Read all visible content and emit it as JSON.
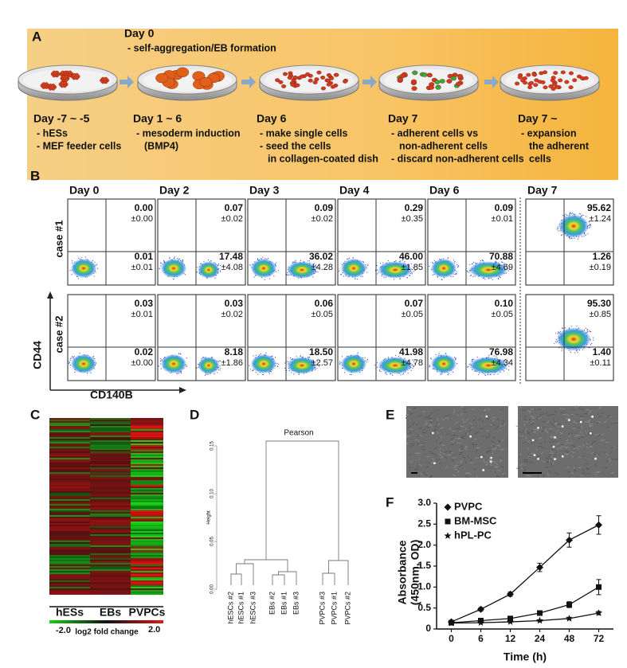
{
  "panel_a": {
    "label": "A",
    "day0": {
      "title": "Day 0",
      "desc": "- self-aggregation/EB formation"
    },
    "steps": [
      {
        "title": "Day -7 ~ -5",
        "lines": [
          "- hESs",
          "- MEF feeder cells"
        ]
      },
      {
        "title": "Day 1 ~ 6",
        "lines": [
          "- mesoderm induction",
          "(BMP4)"
        ]
      },
      {
        "title": "Day 6",
        "lines": [
          "- make single cells",
          "- seed the cells",
          "in collagen-coated dish"
        ]
      },
      {
        "title": "Day 7",
        "lines": [
          "- adherent cells vs",
          "non-adherent cells",
          "- discard non-adherent cells"
        ]
      },
      {
        "title": "Day 7 ~",
        "lines": [
          "- expansion",
          "the adherent",
          "cells"
        ]
      }
    ]
  },
  "panel_b": {
    "label": "B",
    "days": [
      "Day 0",
      "Day 2",
      "Day 3",
      "Day 4",
      "Day 6",
      "Day 7"
    ],
    "y_axis": "CD44",
    "x_axis": "CD140B",
    "rows": [
      {
        "name": "case #1",
        "cells": [
          {
            "upper": "0.00",
            "upper_sd": "±0.00",
            "lower": "0.01",
            "lower_sd": "±0.01"
          },
          {
            "upper": "0.07",
            "upper_sd": "±0.02",
            "lower": "17.48",
            "lower_sd": "±4.08"
          },
          {
            "upper": "0.09",
            "upper_sd": "±0.02",
            "lower": "36.02",
            "lower_sd": "±4.28"
          },
          {
            "upper": "0.29",
            "upper_sd": "±0.35",
            "lower": "46.00",
            "lower_sd": "±1.85"
          },
          {
            "upper": "0.09",
            "upper_sd": "±0.01",
            "lower": "70.88",
            "lower_sd": "±4.69"
          },
          {
            "upper": "95.62",
            "upper_sd": "±1.24",
            "lower": "1.26",
            "lower_sd": "±0.19"
          }
        ]
      },
      {
        "name": "case #2",
        "cells": [
          {
            "upper": "0.03",
            "upper_sd": "±0.01",
            "lower": "0.02",
            "lower_sd": "±0.00"
          },
          {
            "upper": "0.03",
            "upper_sd": "±0.02",
            "lower": "8.18",
            "lower_sd": "±1.86"
          },
          {
            "upper": "0.06",
            "upper_sd": "±0.05",
            "lower": "18.50",
            "lower_sd": "±2.57"
          },
          {
            "upper": "0.07",
            "upper_sd": "±0.05",
            "lower": "41.98",
            "lower_sd": "±4.78"
          },
          {
            "upper": "0.10",
            "upper_sd": "±0.05",
            "lower": "76.98",
            "lower_sd": "±4.34"
          },
          {
            "upper": "95.30",
            "upper_sd": "±0.85",
            "lower": "1.40",
            "lower_sd": "±0.11"
          }
        ]
      }
    ]
  },
  "panel_c": {
    "label": "C",
    "groups": [
      "hESs",
      "EBs",
      "PVPCs"
    ],
    "scale_min": "-2.0",
    "scale_label": "log2 fold change",
    "scale_max": "2.0"
  },
  "panel_d": {
    "label": "D",
    "title": "Pearson",
    "y_axis": "Height",
    "yticks": [
      "0.00",
      "0.05",
      "0.10",
      "0.15"
    ],
    "leaves": [
      "hESCs #2",
      "hESCs #1",
      "hESCs #3",
      "EBs #2",
      "EBs #1",
      "EBs #3",
      "PVPCs #3",
      "PVPCs #1",
      "PVPCs #2"
    ]
  },
  "panel_e": {
    "label": "E"
  },
  "panel_f": {
    "label": "F"
  },
  "chart_data": {
    "type": "line",
    "x_label": "Time (h)",
    "y_label": [
      "Absorbance",
      "(450nm, OD)"
    ],
    "categories": [
      "0",
      "6",
      "12",
      "24",
      "48",
      "72"
    ],
    "ylim": [
      0,
      3
    ],
    "yticks": [
      0,
      0.5,
      {
        "value": 1,
        "label": "1.0"
      },
      1.5,
      {
        "value": 2,
        "label": "2.0"
      },
      2.5,
      {
        "value": 3,
        "label": "3.0"
      }
    ],
    "series": [
      {
        "name": "PVPC",
        "color": "#111111",
        "marker": "diamond",
        "values": [
          0.17,
          0.47,
          0.83,
          1.47,
          2.12,
          2.48
        ],
        "errors": [
          0.02,
          0.04,
          0.05,
          0.1,
          0.17,
          0.22
        ]
      },
      {
        "name": "BM-MSC",
        "color": "#111111",
        "marker": "square",
        "values": [
          0.15,
          0.2,
          0.25,
          0.38,
          0.58,
          1.0
        ],
        "errors": [
          0.02,
          0.02,
          0.03,
          0.04,
          0.07,
          0.18
        ]
      },
      {
        "name": "hPL-PC",
        "color": "#111111",
        "marker": "star",
        "values": [
          0.14,
          0.15,
          0.17,
          0.2,
          0.25,
          0.38
        ],
        "errors": [
          0.01,
          0.01,
          0.01,
          0.02,
          0.03,
          0.04
        ]
      }
    ]
  }
}
